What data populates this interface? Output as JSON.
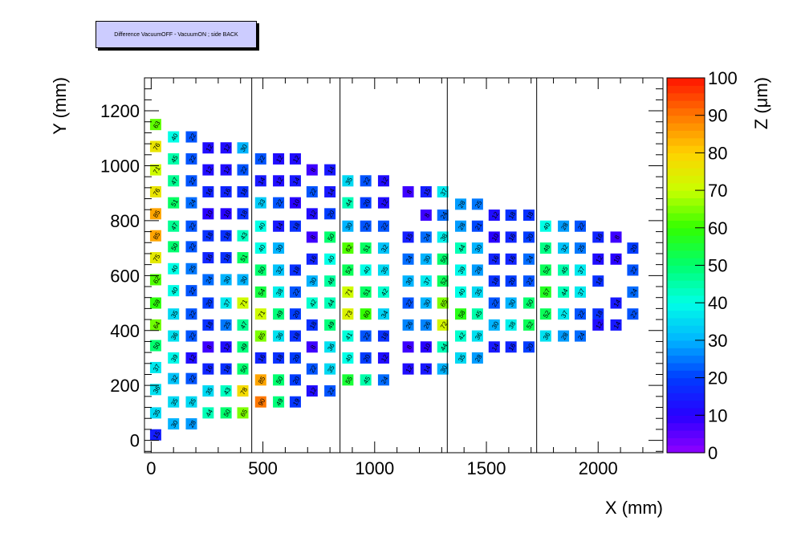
{
  "chart_data": {
    "type": "heatmap",
    "title": "Difference VacuumOFF - VacuumON ; side  BACK",
    "xlabel": "X (mm)",
    "ylabel": "Y (mm)",
    "zlabel": "Z (μm)",
    "xlim": [
      -30,
      2290
    ],
    "ylim": [
      -45,
      1320
    ],
    "zlim": [
      0,
      100
    ],
    "x_ticks": [
      0,
      500,
      1000,
      1500,
      2000
    ],
    "y_ticks": [
      0,
      200,
      400,
      600,
      800,
      1000,
      1200
    ],
    "z_ticks": [
      0,
      10,
      20,
      30,
      40,
      50,
      60,
      70,
      80,
      90,
      100
    ],
    "section_dividers_x": [
      450,
      845,
      1325,
      1725
    ],
    "grid": false,
    "colorbar": "right",
    "columns": [
      {
        "x": 20,
        "points": [
          [
            1150,
            63
          ],
          [
            1070,
            76
          ],
          [
            985,
            71
          ],
          [
            905,
            76
          ],
          [
            825,
            85
          ],
          [
            745,
            85
          ],
          [
            665,
            75
          ],
          [
            585,
            62
          ],
          [
            500,
            59
          ],
          [
            420,
            64
          ],
          [
            345,
            50
          ],
          [
            265,
            37
          ],
          [
            185,
            36
          ],
          [
            100,
            35
          ],
          [
            20,
            15
          ]
        ]
      },
      {
        "x": 100,
        "points": [
          [
            1105,
            40
          ],
          [
            1025,
            45
          ],
          [
            945,
            47
          ],
          [
            865,
            51
          ],
          [
            780,
            47
          ],
          [
            705,
            50
          ],
          [
            625,
            40
          ],
          [
            545,
            40
          ],
          [
            460,
            35
          ],
          [
            380,
            36
          ],
          [
            300,
            39
          ],
          [
            225,
            32
          ],
          [
            140,
            35
          ],
          [
            60,
            30
          ]
        ]
      },
      {
        "x": 180,
        "points": [
          [
            1105,
            22
          ],
          [
            1025,
            22
          ],
          [
            945,
            22
          ],
          [
            865,
            24
          ],
          [
            780,
            22
          ],
          [
            705,
            22
          ],
          [
            625,
            25
          ],
          [
            545,
            22
          ],
          [
            460,
            22
          ],
          [
            380,
            22
          ],
          [
            300,
            12
          ],
          [
            225,
            22
          ],
          [
            140,
            35
          ],
          [
            60,
            28
          ]
        ]
      },
      {
        "x": 255,
        "points": [
          [
            1065,
            12
          ],
          [
            985,
            12
          ],
          [
            905,
            16
          ],
          [
            825,
            10
          ],
          [
            745,
            18
          ],
          [
            665,
            16
          ],
          [
            585,
            24
          ],
          [
            500,
            20
          ],
          [
            420,
            18
          ],
          [
            340,
            8
          ],
          [
            260,
            16
          ],
          [
            180,
            35
          ],
          [
            100,
            44
          ]
        ]
      },
      {
        "x": 335,
        "points": [
          [
            1065,
            12
          ],
          [
            985,
            12
          ],
          [
            905,
            16
          ],
          [
            825,
            10
          ],
          [
            745,
            18
          ],
          [
            665,
            18
          ],
          [
            585,
            30
          ],
          [
            500,
            37
          ],
          [
            420,
            25
          ],
          [
            340,
            12
          ],
          [
            260,
            18
          ],
          [
            180,
            43
          ],
          [
            100,
            50
          ]
        ]
      },
      {
        "x": 410,
        "points": [
          [
            1065,
            30
          ],
          [
            985,
            22
          ],
          [
            905,
            18
          ],
          [
            825,
            18
          ],
          [
            745,
            43
          ],
          [
            665,
            51
          ],
          [
            585,
            30
          ],
          [
            500,
            71
          ],
          [
            420,
            47
          ],
          [
            340,
            49
          ],
          [
            260,
            50
          ],
          [
            180,
            78
          ],
          [
            100,
            65
          ]
        ]
      },
      {
        "x": 490,
        "points": [
          [
            1025,
            22
          ],
          [
            945,
            14
          ],
          [
            865,
            33
          ],
          [
            780,
            40
          ],
          [
            700,
            40
          ],
          [
            620,
            50
          ],
          [
            540,
            54
          ],
          [
            460,
            71
          ],
          [
            380,
            65
          ],
          [
            300,
            16
          ],
          [
            220,
            85
          ],
          [
            140,
            90
          ]
        ]
      },
      {
        "x": 570,
        "points": [
          [
            1025,
            12
          ],
          [
            945,
            12
          ],
          [
            865,
            22
          ],
          [
            780,
            14
          ],
          [
            700,
            30
          ],
          [
            620,
            32
          ],
          [
            540,
            38
          ],
          [
            460,
            49
          ],
          [
            380,
            36
          ],
          [
            300,
            18
          ],
          [
            220,
            50
          ],
          [
            140,
            49
          ]
        ]
      },
      {
        "x": 645,
        "points": [
          [
            1025,
            12
          ],
          [
            945,
            14
          ],
          [
            865,
            10
          ],
          [
            780,
            18
          ],
          [
            620,
            18
          ],
          [
            540,
            22
          ],
          [
            460,
            20
          ],
          [
            380,
            18
          ],
          [
            300,
            20
          ],
          [
            220,
            20
          ],
          [
            140,
            19
          ]
        ]
      },
      {
        "x": 720,
        "points": [
          [
            985,
            8
          ],
          [
            905,
            22
          ],
          [
            825,
            12
          ],
          [
            740,
            8
          ],
          [
            660,
            16
          ],
          [
            580,
            30
          ],
          [
            500,
            42
          ],
          [
            420,
            18
          ],
          [
            340,
            8
          ],
          [
            260,
            22
          ],
          [
            180,
            12
          ]
        ]
      },
      {
        "x": 800,
        "points": [
          [
            985,
            14
          ],
          [
            905,
            14
          ],
          [
            825,
            20
          ],
          [
            740,
            50
          ],
          [
            660,
            40
          ],
          [
            580,
            46
          ],
          [
            500,
            44
          ],
          [
            420,
            49
          ],
          [
            340,
            36
          ],
          [
            260,
            35
          ],
          [
            180,
            22
          ]
        ]
      },
      {
        "x": 880,
        "points": [
          [
            945,
            35
          ],
          [
            865,
            44
          ],
          [
            780,
            30
          ],
          [
            700,
            62
          ],
          [
            620,
            52
          ],
          [
            540,
            71
          ],
          [
            460,
            73
          ],
          [
            380,
            41
          ],
          [
            300,
            40
          ],
          [
            220,
            55
          ]
        ]
      },
      {
        "x": 960,
        "points": [
          [
            945,
            22
          ],
          [
            865,
            20
          ],
          [
            780,
            22
          ],
          [
            700,
            51
          ],
          [
            620,
            40
          ],
          [
            540,
            51
          ],
          [
            460,
            60
          ],
          [
            380,
            22
          ],
          [
            300,
            20
          ],
          [
            220,
            45
          ]
        ]
      },
      {
        "x": 1040,
        "points": [
          [
            945,
            12
          ],
          [
            865,
            12
          ],
          [
            780,
            22
          ],
          [
            700,
            32
          ],
          [
            620,
            35
          ],
          [
            540,
            42
          ],
          [
            460,
            34
          ],
          [
            380,
            18
          ],
          [
            300,
            12
          ],
          [
            220,
            24
          ]
        ]
      },
      {
        "x": 1150,
        "points": [
          [
            905,
            8
          ],
          [
            740,
            15
          ],
          [
            660,
            24
          ],
          [
            580,
            30
          ],
          [
            500,
            22
          ],
          [
            420,
            26
          ],
          [
            340,
            8
          ],
          [
            260,
            12
          ]
        ]
      },
      {
        "x": 1230,
        "points": [
          [
            905,
            15
          ],
          [
            820,
            8
          ],
          [
            740,
            24
          ],
          [
            660,
            30
          ],
          [
            580,
            37
          ],
          [
            500,
            30
          ],
          [
            420,
            26
          ],
          [
            340,
            10
          ],
          [
            260,
            14
          ]
        ]
      },
      {
        "x": 1305,
        "points": [
          [
            905,
            37
          ],
          [
            820,
            24
          ],
          [
            740,
            38
          ],
          [
            660,
            50
          ],
          [
            580,
            52
          ],
          [
            500,
            65
          ],
          [
            420,
            72
          ],
          [
            340,
            44
          ],
          [
            260,
            30
          ]
        ]
      },
      {
        "x": 1385,
        "points": [
          [
            860,
            28
          ],
          [
            780,
            28
          ],
          [
            700,
            44
          ],
          [
            620,
            39
          ],
          [
            540,
            40
          ],
          [
            460,
            58
          ],
          [
            380,
            42
          ],
          [
            300,
            35
          ]
        ]
      },
      {
        "x": 1460,
        "points": [
          [
            860,
            25
          ],
          [
            780,
            21
          ],
          [
            700,
            30
          ],
          [
            620,
            28
          ],
          [
            540,
            35
          ],
          [
            460,
            45
          ],
          [
            380,
            36
          ],
          [
            300,
            28
          ]
        ]
      },
      {
        "x": 1535,
        "points": [
          [
            820,
            12
          ],
          [
            740,
            10
          ],
          [
            660,
            16
          ],
          [
            580,
            18
          ],
          [
            500,
            22
          ],
          [
            420,
            30
          ],
          [
            340,
            14
          ]
        ]
      },
      {
        "x": 1610,
        "points": [
          [
            820,
            18
          ],
          [
            740,
            16
          ],
          [
            660,
            16
          ],
          [
            580,
            20
          ],
          [
            500,
            30
          ],
          [
            420,
            38
          ],
          [
            340,
            16
          ]
        ]
      },
      {
        "x": 1690,
        "points": [
          [
            820,
            18
          ],
          [
            740,
            20
          ],
          [
            660,
            24
          ],
          [
            580,
            22
          ],
          [
            500,
            50
          ],
          [
            420,
            52
          ],
          [
            340,
            20
          ]
        ]
      },
      {
        "x": 1765,
        "points": [
          [
            780,
            40
          ],
          [
            700,
            48
          ],
          [
            620,
            52
          ],
          [
            540,
            57
          ],
          [
            460,
            52
          ],
          [
            380,
            36
          ]
        ]
      },
      {
        "x": 1845,
        "points": [
          [
            780,
            28
          ],
          [
            700,
            32
          ],
          [
            620,
            45
          ],
          [
            540,
            44
          ],
          [
            460,
            37
          ],
          [
            380,
            28
          ]
        ]
      },
      {
        "x": 1920,
        "points": [
          [
            780,
            22
          ],
          [
            700,
            25
          ],
          [
            620,
            37
          ],
          [
            540,
            37
          ],
          [
            460,
            22
          ],
          [
            380,
            24
          ]
        ]
      },
      {
        "x": 2000,
        "points": [
          [
            740,
            16
          ],
          [
            660,
            12
          ],
          [
            580,
            18
          ],
          [
            460,
            18
          ],
          [
            420,
            12
          ]
        ]
      },
      {
        "x": 2080,
        "points": [
          [
            740,
            8
          ],
          [
            660,
            10
          ],
          [
            500,
            14
          ],
          [
            420,
            14
          ]
        ]
      },
      {
        "x": 2155,
        "points": [
          [
            700,
            20
          ],
          [
            620,
            22
          ],
          [
            540,
            24
          ],
          [
            460,
            22
          ]
        ]
      }
    ]
  }
}
